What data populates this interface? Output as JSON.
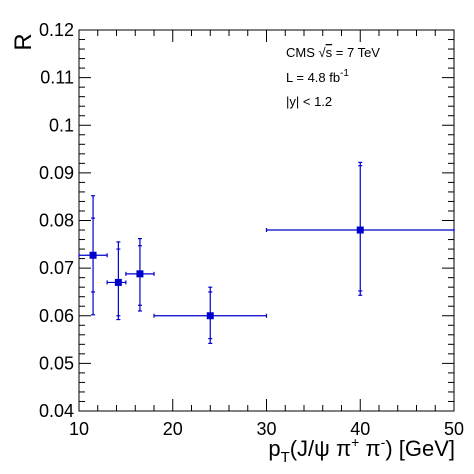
{
  "chart_data": {
    "type": "scatter",
    "title": "",
    "xlabel": "p_T(J/ψ π⁺ π⁻) [GeV]",
    "ylabel": "R",
    "xlim": [
      10,
      50
    ],
    "ylim": [
      0.04,
      0.12
    ],
    "grid": false,
    "x_ticks": [
      10,
      20,
      30,
      40,
      50
    ],
    "y_ticks": [
      0.04,
      0.05,
      0.06,
      0.07,
      0.08,
      0.09,
      0.1,
      0.11,
      0.12
    ],
    "y_tick_labels": [
      "0.04",
      "0.05",
      "0.06",
      "0.07",
      "0.08",
      "0.09",
      "0.1",
      "0.11",
      "0.12"
    ],
    "marker_color": "#0000cc",
    "series": [
      {
        "points": [
          {
            "x": 11.5,
            "y": 0.0727,
            "x_low": 10,
            "x_high": 13,
            "y_stat_low": 0.065,
            "y_stat_high": 0.0805,
            "y_tot_low": 0.0602,
            "y_tot_high": 0.0852
          },
          {
            "x": 14.2,
            "y": 0.067,
            "x_low": 13,
            "x_high": 15,
            "y_stat_low": 0.06,
            "y_stat_high": 0.074,
            "y_tot_low": 0.0592,
            "y_tot_high": 0.0755
          },
          {
            "x": 16.5,
            "y": 0.0688,
            "x_low": 15,
            "x_high": 18,
            "y_stat_low": 0.0622,
            "y_stat_high": 0.0747,
            "y_tot_low": 0.061,
            "y_tot_high": 0.0762
          },
          {
            "x": 24.0,
            "y": 0.06,
            "x_low": 18,
            "x_high": 30,
            "y_stat_low": 0.0552,
            "y_stat_high": 0.065,
            "y_tot_low": 0.0542,
            "y_tot_high": 0.066
          },
          {
            "x": 40.0,
            "y": 0.078,
            "x_low": 30,
            "x_high": 50,
            "y_stat_low": 0.0652,
            "y_stat_high": 0.0915,
            "y_tot_low": 0.0643,
            "y_tot_high": 0.0922
          }
        ]
      }
    ],
    "annotations": [
      "CMS  √s = 7 TeV",
      "L = 4.8 fb⁻¹",
      "|y| < 1.2"
    ]
  }
}
